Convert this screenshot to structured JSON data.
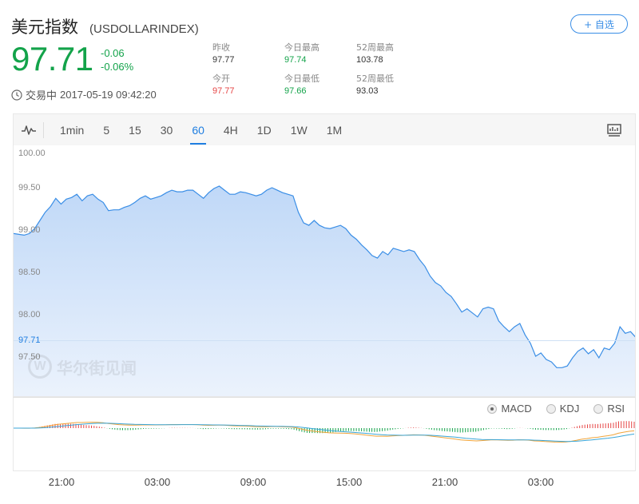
{
  "header": {
    "name": "美元指数",
    "code": "(USDOLLARINDEX)",
    "fav_label": "+ 自选"
  },
  "quote": {
    "price": "97.71",
    "change": "-0.06",
    "change_pct": "-0.06%",
    "status": "交易中",
    "timestamp": "2017-05-19 09:42:20"
  },
  "stats": [
    {
      "label": "昨收",
      "value": "97.77",
      "color": "#333333"
    },
    {
      "label": "今日最高",
      "value": "97.74",
      "color": "#13a34a"
    },
    {
      "label": "52周最高",
      "value": "103.78",
      "color": "#333333"
    },
    {
      "label": "今开",
      "value": "97.77",
      "color": "#e64545"
    },
    {
      "label": "今日最低",
      "value": "97.66",
      "color": "#13a34a"
    },
    {
      "label": "52周最低",
      "value": "93.03",
      "color": "#333333"
    }
  ],
  "toolbar": {
    "tabs": [
      "1min",
      "5",
      "15",
      "30",
      "60",
      "4H",
      "1D",
      "1W",
      "1M"
    ],
    "active_tab": "60"
  },
  "indicators": {
    "options": [
      "MACD",
      "KDJ",
      "RSI"
    ],
    "selected": "MACD"
  },
  "watermark": "华尔街见闻",
  "colors": {
    "up": "#e64545",
    "down": "#13a34a",
    "accent": "#1f7ee1",
    "line": "#3a8ee6"
  },
  "chart_data": {
    "type": "area",
    "y_ticks": [
      "100.00",
      "99.50",
      "99.00",
      "98.50",
      "98.00",
      "97.50"
    ],
    "current_value_label": "97.71",
    "x_tick_labels": [
      "21:00",
      "03:00",
      "09:00",
      "15:00",
      "21:00",
      "03:00"
    ],
    "ylim": [
      97.05,
      100.05
    ],
    "values": [
      99.02,
      99.01,
      99.0,
      99.02,
      99.08,
      99.18,
      99.28,
      99.35,
      99.45,
      99.38,
      99.44,
      99.46,
      99.5,
      99.42,
      99.48,
      99.5,
      99.44,
      99.4,
      99.3,
      99.31,
      99.31,
      99.34,
      99.36,
      99.4,
      99.45,
      99.48,
      99.44,
      99.46,
      99.48,
      99.52,
      99.55,
      99.53,
      99.53,
      99.55,
      99.55,
      99.5,
      99.45,
      99.52,
      99.57,
      99.6,
      99.55,
      99.5,
      99.5,
      99.53,
      99.52,
      99.5,
      99.48,
      99.5,
      99.55,
      99.58,
      99.55,
      99.52,
      99.5,
      99.48,
      99.28,
      99.15,
      99.12,
      99.18,
      99.12,
      99.09,
      99.08,
      99.1,
      99.12,
      99.08,
      99.0,
      98.95,
      98.88,
      98.82,
      98.75,
      98.72,
      98.8,
      98.76,
      98.84,
      98.82,
      98.8,
      98.82,
      98.8,
      98.7,
      98.62,
      98.5,
      98.42,
      98.38,
      98.3,
      98.25,
      98.16,
      98.06,
      98.1,
      98.05,
      98.0,
      98.1,
      98.12,
      98.1,
      97.95,
      97.88,
      97.82,
      97.88,
      97.92,
      97.78,
      97.68,
      97.52,
      97.56,
      97.48,
      97.45,
      97.38,
      97.38,
      97.4,
      97.5,
      97.58,
      97.62,
      97.55,
      97.6,
      97.5,
      97.62,
      97.6,
      97.68,
      97.88,
      97.8,
      97.82,
      97.75
    ]
  }
}
